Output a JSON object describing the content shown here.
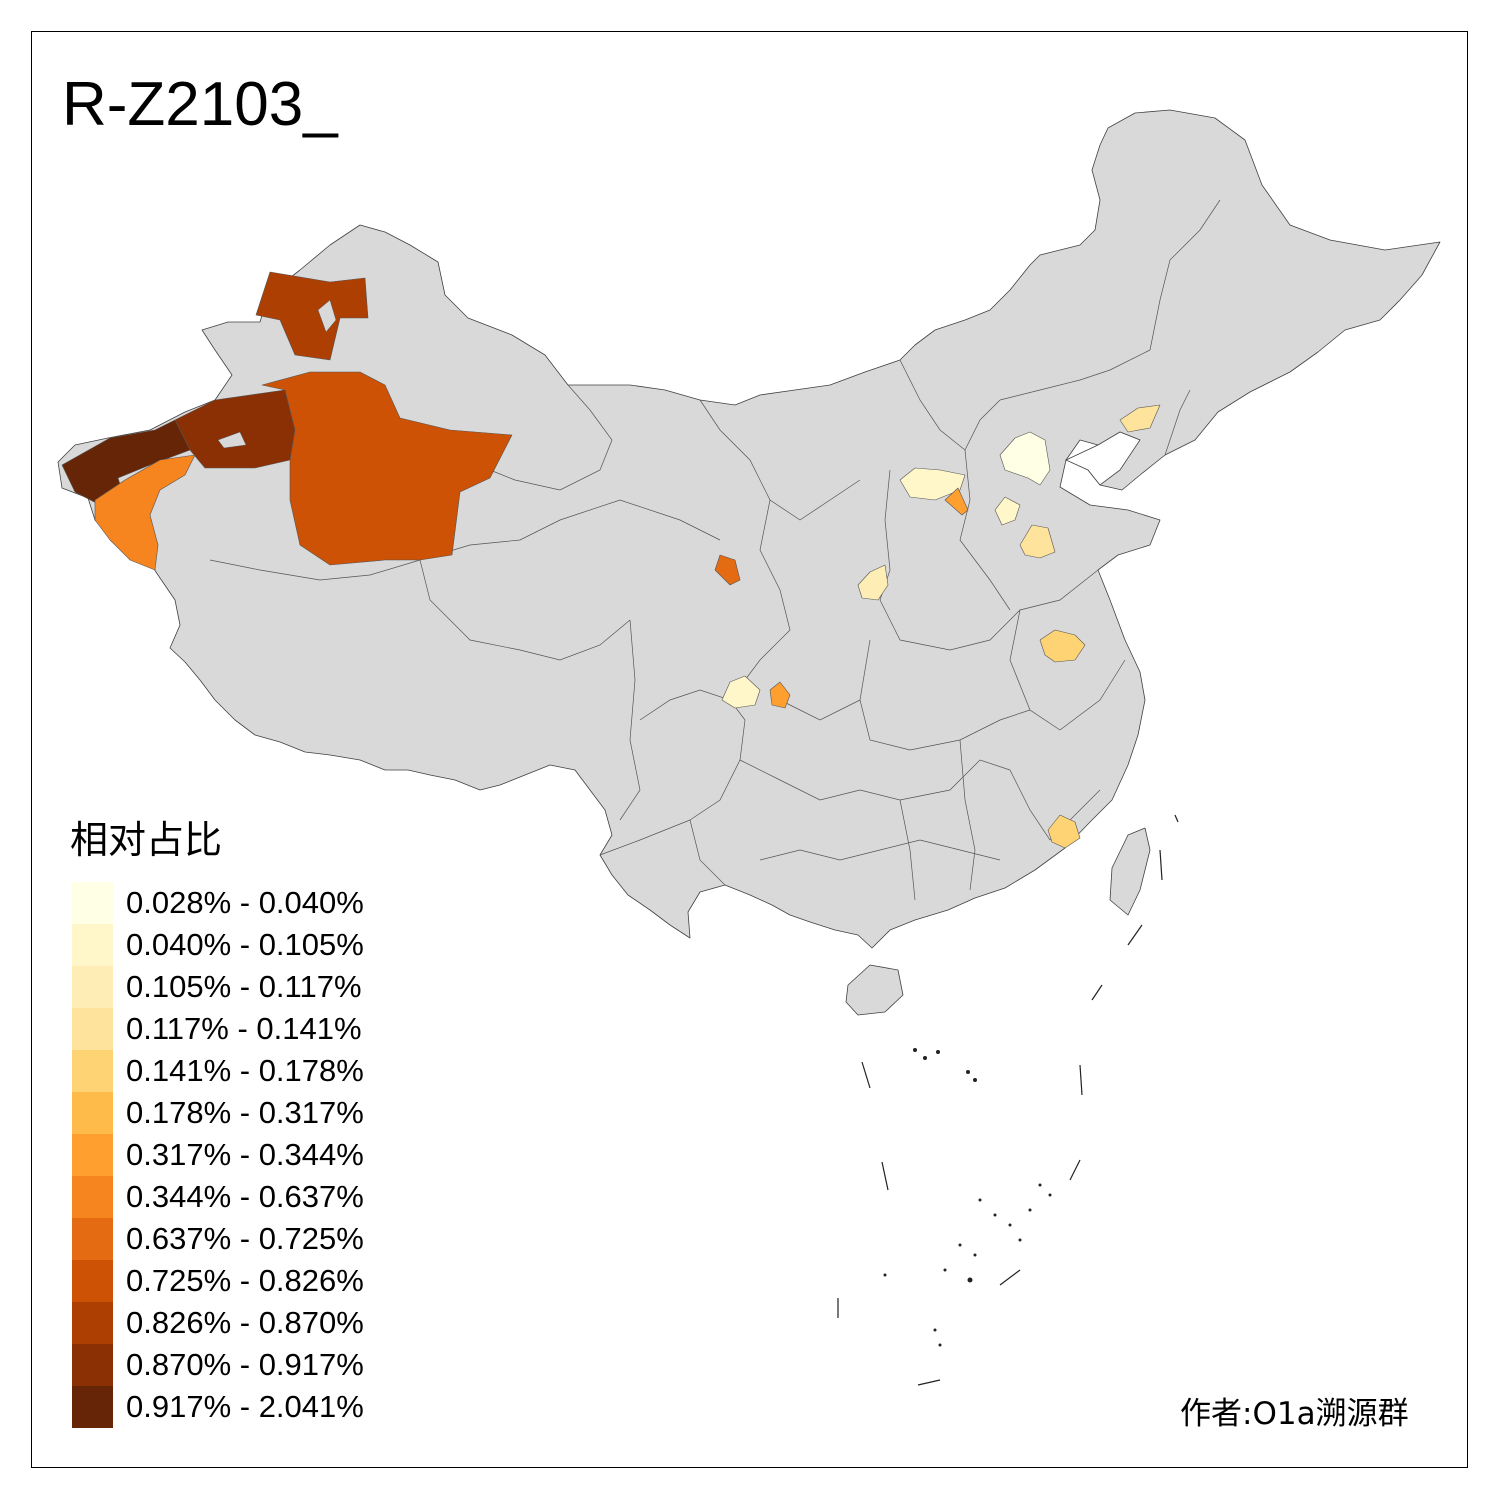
{
  "title": "R-Z2103_",
  "legend": {
    "title": "相对占比",
    "items": [
      {
        "range": "0.028% - 0.040%",
        "color": "#ffffe5"
      },
      {
        "range": "0.040% - 0.105%",
        "color": "#fff7c9"
      },
      {
        "range": "0.105% - 0.117%",
        "color": "#feedb4"
      },
      {
        "range": "0.117% - 0.141%",
        "color": "#fee39d"
      },
      {
        "range": "0.141% - 0.178%",
        "color": "#fed373"
      },
      {
        "range": "0.178% - 0.317%",
        "color": "#febb4a"
      },
      {
        "range": "0.317% - 0.344%",
        "color": "#fe9f2f"
      },
      {
        "range": "0.344% - 0.637%",
        "color": "#f6851f"
      },
      {
        "range": "0.637% - 0.725%",
        "color": "#e56b12"
      },
      {
        "range": "0.725% - 0.826%",
        "color": "#cd5205"
      },
      {
        "range": "0.826% - 0.870%",
        "color": "#ad3f03"
      },
      {
        "range": "0.870% - 0.917%",
        "color": "#8b3004"
      },
      {
        "range": "0.917% - 2.041%",
        "color": "#662506"
      }
    ]
  },
  "credit": "作者:O1a溯源群",
  "colors": {
    "land": "#d9d9d9",
    "border": "#404040",
    "frame": "#000000"
  }
}
